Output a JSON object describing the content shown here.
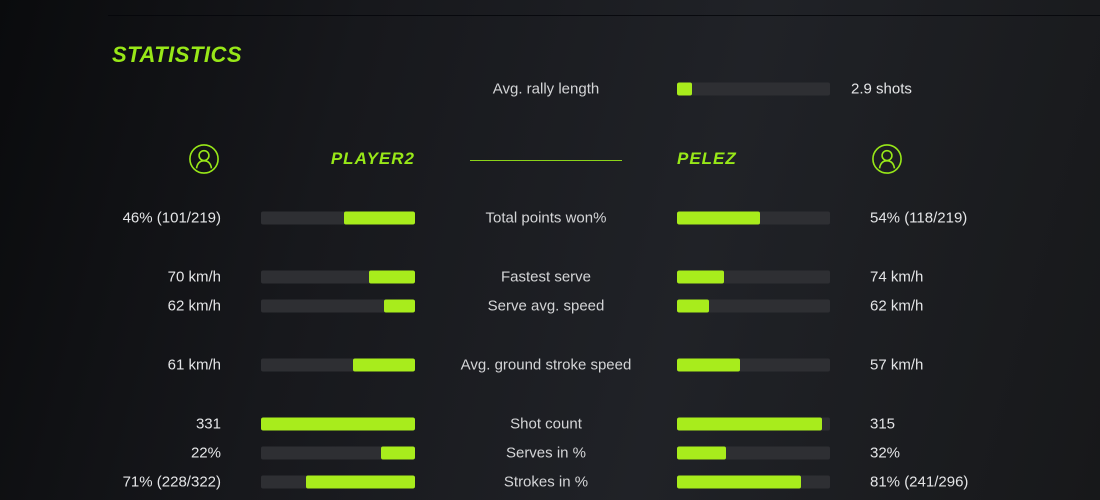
{
  "title": "STATISTICS",
  "colors": {
    "accent": "#98e818",
    "bar_fill": "#a8ec1c",
    "bar_track": "#2e2f33",
    "value_text": "#e4e5e7",
    "label_text": "#d4d5d7"
  },
  "icons": {
    "player_left": "user-icon",
    "player_right": "user-icon"
  },
  "rally": {
    "label": "Avg. rally length",
    "value": "2.9 shots",
    "fill_pct": 10
  },
  "players": {
    "left": "PLAYER2",
    "right": "PELEZ"
  },
  "chart_data": {
    "type": "bar",
    "title": "STATISTICS",
    "legend_entries": [
      "PLAYER2",
      "PELEZ"
    ],
    "categories": [
      "Total points won%",
      "Fastest serve",
      "Serve avg. speed",
      "Avg. ground stroke speed",
      "Shot count",
      "Serves in %",
      "Strokes in %"
    ],
    "series": [
      {
        "name": "PLAYER2",
        "values": [
          "46% (101/219)",
          "70 km/h",
          "62 km/h",
          "61 km/h",
          "331",
          "22%",
          "71% (228/322)"
        ]
      },
      {
        "name": "PELEZ",
        "values": [
          "54% (118/219)",
          "74 km/h",
          "62 km/h",
          "57 km/h",
          "315",
          "32%",
          "81% (241/296)"
        ]
      }
    ]
  },
  "stats": [
    {
      "label": "Total points won%",
      "left_value": "46% (101/219)",
      "right_value": "54% (118/219)",
      "left_fill": 46,
      "right_fill": 54
    },
    {
      "label": "Fastest serve",
      "left_value": "70 km/h",
      "right_value": "74 km/h",
      "left_fill": 30,
      "right_fill": 31
    },
    {
      "label": "Serve avg. speed",
      "left_value": "62 km/h",
      "right_value": "62 km/h",
      "left_fill": 20,
      "right_fill": 21
    },
    {
      "label": "Avg. ground stroke speed",
      "left_value": "61 km/h",
      "right_value": "57 km/h",
      "left_fill": 40,
      "right_fill": 41
    },
    {
      "label": "Shot count",
      "left_value": "331",
      "right_value": "315",
      "left_fill": 100,
      "right_fill": 95
    },
    {
      "label": "Serves in %",
      "left_value": "22%",
      "right_value": "32%",
      "left_fill": 22,
      "right_fill": 32
    },
    {
      "label": "Strokes in %",
      "left_value": "71% (228/322)",
      "right_value": "81% (241/296)",
      "left_fill": 71,
      "right_fill": 81
    }
  ]
}
